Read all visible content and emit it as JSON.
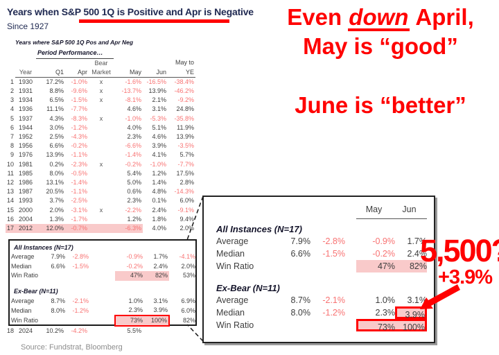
{
  "colors": {
    "navy": "#202a52",
    "accent_red": "#ff0000",
    "negative_red": "#f87272",
    "highlight_pink": "#f9caca",
    "dark_text": "#3d3d3d",
    "source_gray": "#8c8c8c"
  },
  "header": {
    "title": "Years when S&P 500 1Q is Positive and Apr is Negative",
    "subtitle": "Since 1927"
  },
  "annotations": {
    "line1_pre": "Even ",
    "line1_em": "down",
    "line1_post": " April,",
    "line2": "May is “good”",
    "line3": "June is “better”",
    "price": "5,500?",
    "pct": "+3.9%"
  },
  "table": {
    "caption": "Years where S&P 500 1Q Pos and Apr Neg",
    "group_header": "Period Performance…",
    "header_top": [
      "",
      "",
      "",
      "",
      "Bear",
      "",
      "",
      "May to"
    ],
    "header": [
      "",
      "Year",
      "Q1",
      "Apr",
      "Market",
      "May",
      "Jun",
      "YE"
    ],
    "rows": [
      [
        "1",
        "1930",
        "17.2%",
        "-1.0%",
        "x",
        "-1.6%",
        "-16.5%",
        "-38.4%"
      ],
      [
        "2",
        "1931",
        "8.8%",
        "-9.6%",
        "x",
        "-13.7%",
        "13.9%",
        "-46.2%"
      ],
      [
        "3",
        "1934",
        "6.5%",
        "-1.5%",
        "x",
        "-8.1%",
        "2.1%",
        "-9.2%"
      ],
      [
        "4",
        "1936",
        "11.1%",
        "-7.7%",
        "",
        "4.6%",
        "3.1%",
        "24.8%"
      ],
      [
        "5",
        "1937",
        "4.3%",
        "-8.3%",
        "x",
        "-1.0%",
        "-5.3%",
        "-35.8%"
      ],
      [
        "6",
        "1944",
        "3.0%",
        "-1.2%",
        "",
        "4.0%",
        "5.1%",
        "11.9%"
      ],
      [
        "7",
        "1952",
        "2.5%",
        "-4.3%",
        "",
        "2.3%",
        "4.6%",
        "13.9%"
      ],
      [
        "8",
        "1956",
        "6.6%",
        "-0.2%",
        "",
        "-6.6%",
        "3.9%",
        "-3.5%"
      ],
      [
        "9",
        "1976",
        "13.9%",
        "-1.1%",
        "",
        "-1.4%",
        "4.1%",
        "5.7%"
      ],
      [
        "10",
        "1981",
        "0.2%",
        "-2.3%",
        "x",
        "-0.2%",
        "-1.0%",
        "-7.7%"
      ],
      [
        "11",
        "1985",
        "8.0%",
        "-0.5%",
        "",
        "5.4%",
        "1.2%",
        "17.5%"
      ],
      [
        "12",
        "1986",
        "13.1%",
        "-1.4%",
        "",
        "5.0%",
        "1.4%",
        "2.8%"
      ],
      [
        "13",
        "1987",
        "20.5%",
        "-1.1%",
        "",
        "0.6%",
        "4.8%",
        "-14.3%"
      ],
      [
        "14",
        "1993",
        "3.7%",
        "-2.5%",
        "",
        "2.3%",
        "0.1%",
        "6.0%"
      ],
      [
        "15",
        "2000",
        "2.0%",
        "-3.1%",
        "x",
        "-2.2%",
        "2.4%",
        "-9.1%"
      ],
      [
        "16",
        "2004",
        "1.3%",
        "-1.7%",
        "",
        "1.2%",
        "1.8%",
        "9.4%"
      ],
      [
        "17",
        "2012",
        "12.0%",
        "-0.7%",
        "",
        "-6.3%",
        "4.0%",
        "2.0%"
      ]
    ],
    "highlight_year": "2012",
    "final_row": [
      "18",
      "2024",
      "10.2%",
      "-4.2%",
      "",
      "5.5%",
      "",
      ""
    ]
  },
  "summary": {
    "callout_columns": [
      "May",
      "Jun"
    ],
    "groups": [
      {
        "title": "All Instances (N=17)",
        "rows": [
          {
            "label": "Average",
            "q1": "7.9%",
            "apr": "-2.8%",
            "may": "-0.9%",
            "jun": "1.7%",
            "ye": "-4.1%"
          },
          {
            "label": "Median",
            "q1": "6.6%",
            "apr": "-1.5%",
            "may": "-0.2%",
            "jun": "2.4%",
            "ye": "2.0%"
          },
          {
            "label": "Win Ratio",
            "q1": "",
            "apr": "",
            "may": "47%",
            "jun": "82%",
            "ye": "53%",
            "highlight": true
          }
        ]
      },
      {
        "title": "Ex-Bear (N=11)",
        "rows": [
          {
            "label": "Average",
            "q1": "8.7%",
            "apr": "-2.1%",
            "may": "1.0%",
            "jun": "3.1%",
            "ye": "6.9%"
          },
          {
            "label": "Median",
            "q1": "8.0%",
            "apr": "-1.2%",
            "may": "2.3%",
            "jun": "3.9%",
            "ye": "6.0%",
            "jun_boxed": true
          },
          {
            "label": "Win Ratio",
            "q1": "",
            "apr": "",
            "may": "73%",
            "jun": "100%",
            "ye": "82%",
            "highlight": true,
            "boxed": true
          }
        ]
      }
    ]
  },
  "source": "Source: Fundstrat, Bloomberg"
}
